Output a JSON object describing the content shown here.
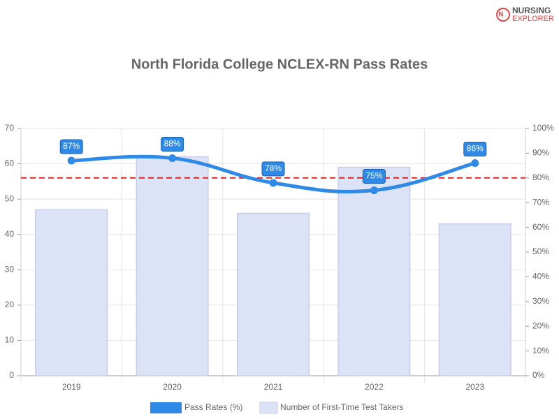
{
  "logo": {
    "line1": "NURSING",
    "line2": "EXPLORER"
  },
  "chart_data": {
    "type": "combo",
    "title": "North Florida College NCLEX-RN Pass Rates",
    "categories": [
      "2019",
      "2020",
      "2021",
      "2022",
      "2023"
    ],
    "series": [
      {
        "name": "Pass Rates (%)",
        "type": "line",
        "axis": "y2",
        "color": "#2e8ae6",
        "values": [
          87,
          88,
          78,
          75,
          86
        ],
        "value_labels": [
          "87%",
          "88%",
          "78%",
          "75%",
          "86%"
        ]
      },
      {
        "name": "Number of First-Time Test Takers",
        "type": "bar",
        "axis": "y",
        "color": "#dce3f7",
        "values": [
          47,
          62,
          46,
          59,
          43
        ]
      }
    ],
    "ylim": [
      0,
      70
    ],
    "yticks": [
      0,
      10,
      20,
      30,
      40,
      50,
      60,
      70
    ],
    "y2lim": [
      0,
      100
    ],
    "y2ticks": [
      {
        "value": 0,
        "label": "0%"
      },
      {
        "value": 10,
        "label": "10%"
      },
      {
        "value": 20,
        "label": "20%"
      },
      {
        "value": 30,
        "label": "30%"
      },
      {
        "value": 40,
        "label": "40%"
      },
      {
        "value": 50,
        "label": "50%"
      },
      {
        "value": 60,
        "label": "60%"
      },
      {
        "value": 70,
        "label": "70%"
      },
      {
        "value": 80,
        "label": "80%"
      },
      {
        "value": 90,
        "label": "90%"
      },
      {
        "value": 100,
        "label": "100%"
      }
    ],
    "reference_line": {
      "value": 80,
      "axis": "y2",
      "color": "#e02020"
    },
    "grid": true
  }
}
